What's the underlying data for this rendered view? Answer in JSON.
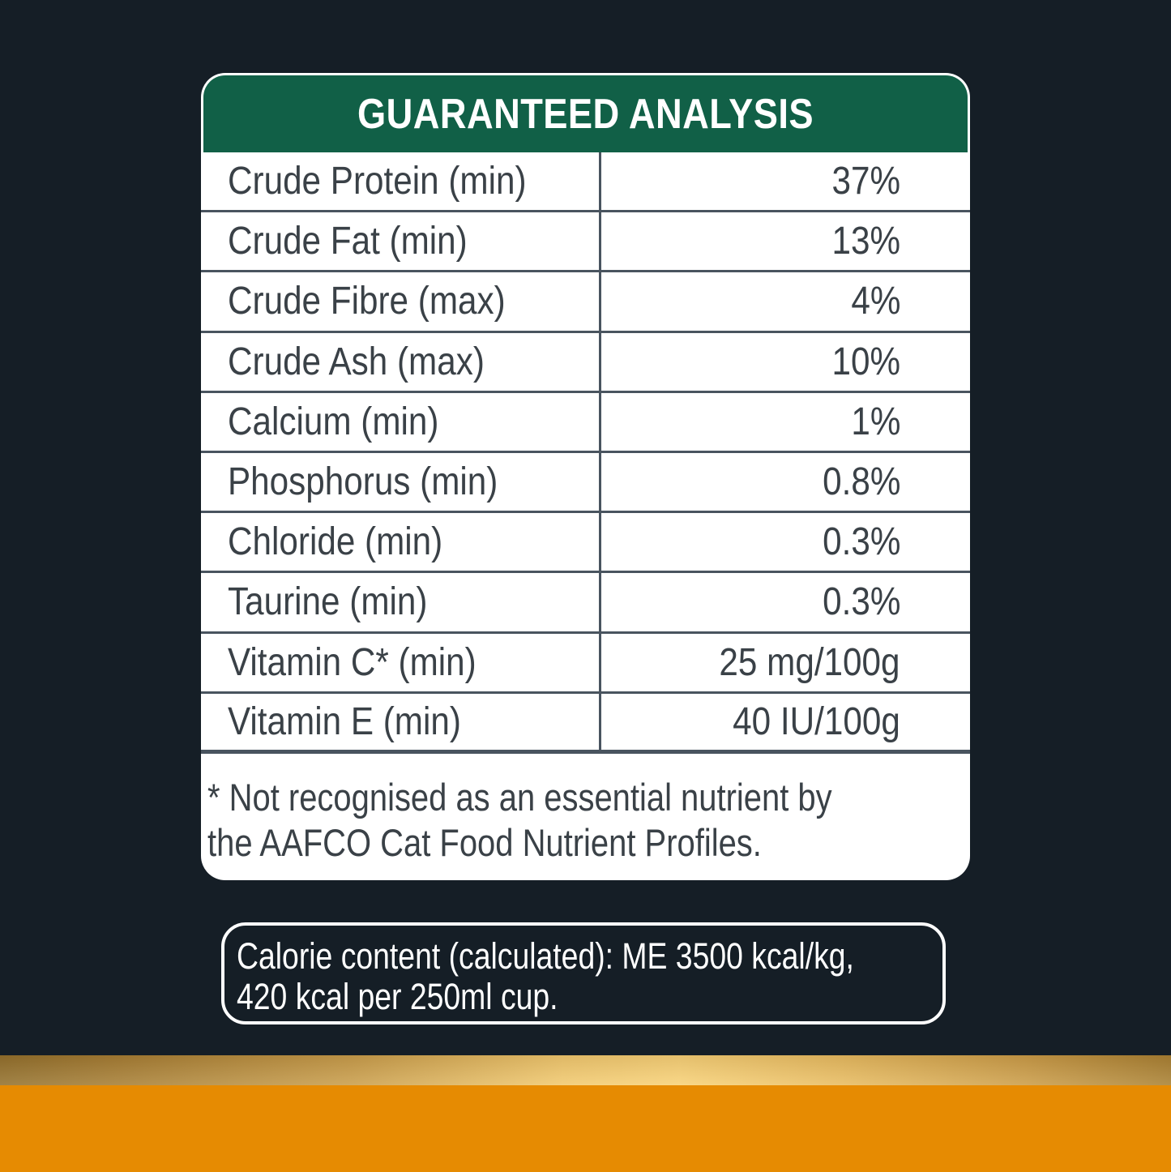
{
  "colors": {
    "background": "#151E26",
    "card_background": "#FFFFFF",
    "header_green": "#116047",
    "table_line": "#49545F",
    "table_text": "#3A4147",
    "white_text": "#FFFFFF",
    "gold_band_dark_left": "#8F6D2E",
    "gold_band_bright_center": "#F8D27C",
    "gold_band_dark_right": "#A67E35",
    "footer_orange": "#E68B02"
  },
  "analysis_card": {
    "title": "GUARANTEED ANALYSIS",
    "rows": [
      {
        "label": "Crude Protein (min)",
        "value": "37%"
      },
      {
        "label": "Crude Fat (min)",
        "value": "13%"
      },
      {
        "label": "Crude Fibre (max)",
        "value": "4%"
      },
      {
        "label": "Crude Ash (max)",
        "value": "10%"
      },
      {
        "label": "Calcium (min)",
        "value": "1%"
      },
      {
        "label": "Phosphorus (min)",
        "value": "0.8%"
      },
      {
        "label": "Chloride (min)",
        "value": "0.3%"
      },
      {
        "label": "Taurine (min)",
        "value": "0.3%"
      },
      {
        "label": "Vitamin C* (min)",
        "value": "25 mg/100g"
      },
      {
        "label": "Vitamin E (min)",
        "value": "40 IU/100g"
      }
    ],
    "footnote_line1": "* Not recognised as an essential nutrient by",
    "footnote_line2": "the AAFCO Cat Food Nutrient Profiles."
  },
  "calorie_box": {
    "line1": "Calorie content (calculated): ME 3500 kcal/kg,",
    "line2": "420 kcal per 250ml cup."
  }
}
